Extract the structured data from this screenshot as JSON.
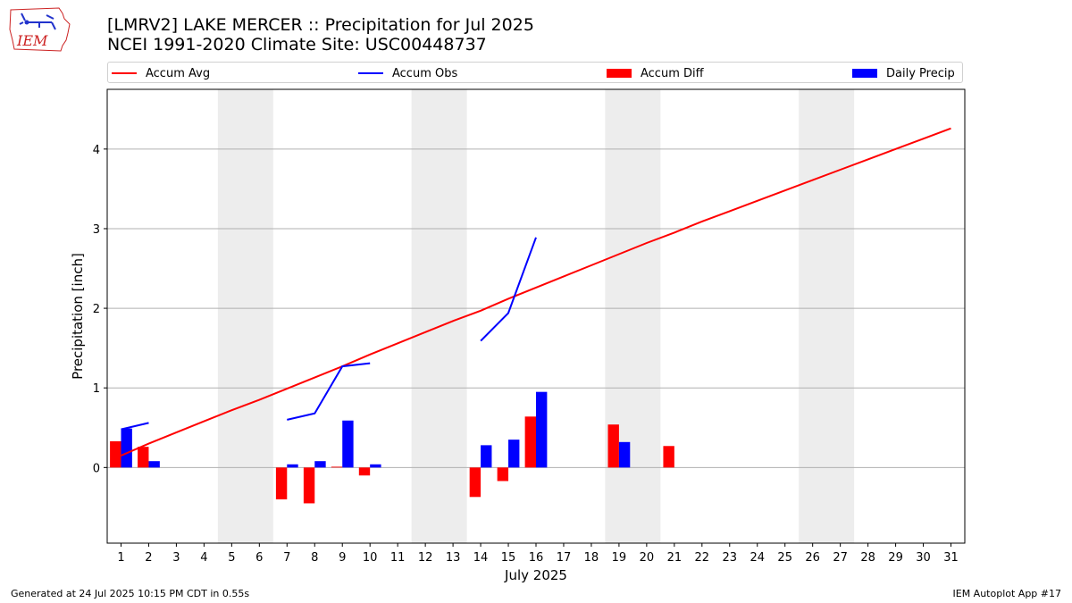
{
  "header": {
    "title_line1": "[LMRV2] LAKE MERCER :: Precipitation for Jul 2025",
    "title_line2": "NCEI 1991-2020 Climate Site: USC00448737",
    "logo_text": "IEM"
  },
  "legend": {
    "accum_avg": "Accum Avg",
    "accum_obs": "Accum Obs",
    "accum_diff": "Accum Diff",
    "daily_precip": "Daily Precip"
  },
  "footer": {
    "left": "Generated at 24 Jul 2025 10:15 PM CDT in 0.55s",
    "right": "IEM Autoplot App #17"
  },
  "colors": {
    "accum_avg": "#ff0000",
    "accum_obs": "#0000ff",
    "accum_diff": "#ff0000",
    "daily_precip": "#0000ff",
    "weekend_band": "#ededed",
    "grid": "#b0b0b0"
  },
  "chart_data": {
    "type": "bar",
    "xlabel": "July 2025",
    "ylabel": "Precipitation [inch]",
    "xlim": [
      0.5,
      31.5
    ],
    "ylim": [
      -0.95,
      4.75
    ],
    "yticks": [
      0,
      1,
      2,
      3,
      4
    ],
    "grid": "horizontal",
    "legend_position": "top",
    "days": [
      1,
      2,
      3,
      4,
      5,
      6,
      7,
      8,
      9,
      10,
      11,
      12,
      13,
      14,
      15,
      16,
      17,
      18,
      19,
      20,
      21,
      22,
      23,
      24,
      25,
      26,
      27,
      28,
      29,
      30,
      31
    ],
    "weekend_bands": [
      [
        4.5,
        6.5
      ],
      [
        11.5,
        13.5
      ],
      [
        18.5,
        20.5
      ],
      [
        25.5,
        27.5
      ]
    ],
    "series": [
      {
        "name": "Accum Avg",
        "kind": "line",
        "x": [
          1,
          2,
          3,
          4,
          5,
          6,
          7,
          8,
          9,
          10,
          11,
          12,
          13,
          14,
          15,
          16,
          17,
          18,
          19,
          20,
          21,
          22,
          23,
          24,
          25,
          26,
          27,
          28,
          29,
          30,
          31
        ],
        "values": [
          0.15,
          0.3,
          0.44,
          0.58,
          0.72,
          0.85,
          0.99,
          1.13,
          1.27,
          1.42,
          1.56,
          1.7,
          1.84,
          1.97,
          2.12,
          2.26,
          2.4,
          2.54,
          2.68,
          2.82,
          2.95,
          3.09,
          3.22,
          3.35,
          3.48,
          3.61,
          3.74,
          3.87,
          4.0,
          4.13,
          4.26
        ]
      },
      {
        "name": "Accum Obs",
        "kind": "line",
        "x": [
          1,
          2,
          3,
          4,
          5,
          6,
          7,
          8,
          9,
          10,
          11,
          12,
          13,
          14,
          15,
          16
        ],
        "values": [
          0.48,
          0.56,
          null,
          null,
          null,
          null,
          0.6,
          0.68,
          1.27,
          1.31,
          null,
          null,
          null,
          1.59,
          1.94,
          2.89
        ]
      },
      {
        "name": "Accum Diff",
        "kind": "bar",
        "offset": -0.2,
        "x": [
          1,
          2,
          7,
          8,
          9,
          10,
          14,
          15,
          16,
          19,
          21
        ],
        "values": [
          0.33,
          0.26,
          -0.4,
          -0.45,
          0.01,
          -0.1,
          -0.37,
          -0.17,
          0.64,
          0.54,
          0.27
        ]
      },
      {
        "name": "Daily Precip",
        "kind": "bar",
        "offset": 0.2,
        "x": [
          1,
          2,
          7,
          8,
          9,
          10,
          14,
          15,
          16,
          19
        ],
        "values": [
          0.49,
          0.08,
          0.04,
          0.08,
          0.59,
          0.04,
          0.28,
          0.35,
          0.95,
          0.32
        ]
      }
    ]
  }
}
